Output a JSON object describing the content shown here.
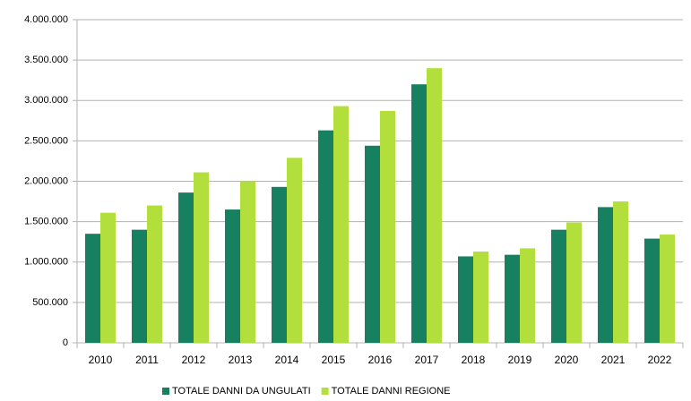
{
  "chart_data": {
    "type": "bar",
    "categories": [
      "2010",
      "2011",
      "2012",
      "2013",
      "2014",
      "2015",
      "2016",
      "2017",
      "2018",
      "2019",
      "2020",
      "2021",
      "2022"
    ],
    "series": [
      {
        "name": "TOTALE DANNI DA UNGULATI",
        "color": "#168060",
        "values": [
          1350000,
          1400000,
          1860000,
          1650000,
          1930000,
          2630000,
          2440000,
          3200000,
          1070000,
          1090000,
          1400000,
          1680000,
          1290000
        ]
      },
      {
        "name": "TOTALE DANNI REGIONE",
        "color": "#b3df3c",
        "values": [
          1610000,
          1700000,
          2110000,
          2000000,
          2290000,
          2930000,
          2870000,
          3400000,
          1130000,
          1170000,
          1490000,
          1750000,
          1340000
        ]
      }
    ],
    "ylim": [
      0,
      4000000
    ],
    "yticks": [
      0,
      {
        "value": 500000,
        "label": "500.000"
      },
      {
        "value": 1000000,
        "label": "1.000.000"
      },
      {
        "value": 1500000,
        "label": "1.500.000"
      },
      {
        "value": 2000000,
        "label": "2.000.000"
      },
      {
        "value": 2500000,
        "label": "2.500.000"
      },
      {
        "value": 3000000,
        "label": "3.000.000"
      },
      {
        "value": 3500000,
        "label": "3.500.000"
      },
      {
        "value": 4000000,
        "label": "4.000.000"
      }
    ],
    "grid": true,
    "legend": "bottom"
  }
}
